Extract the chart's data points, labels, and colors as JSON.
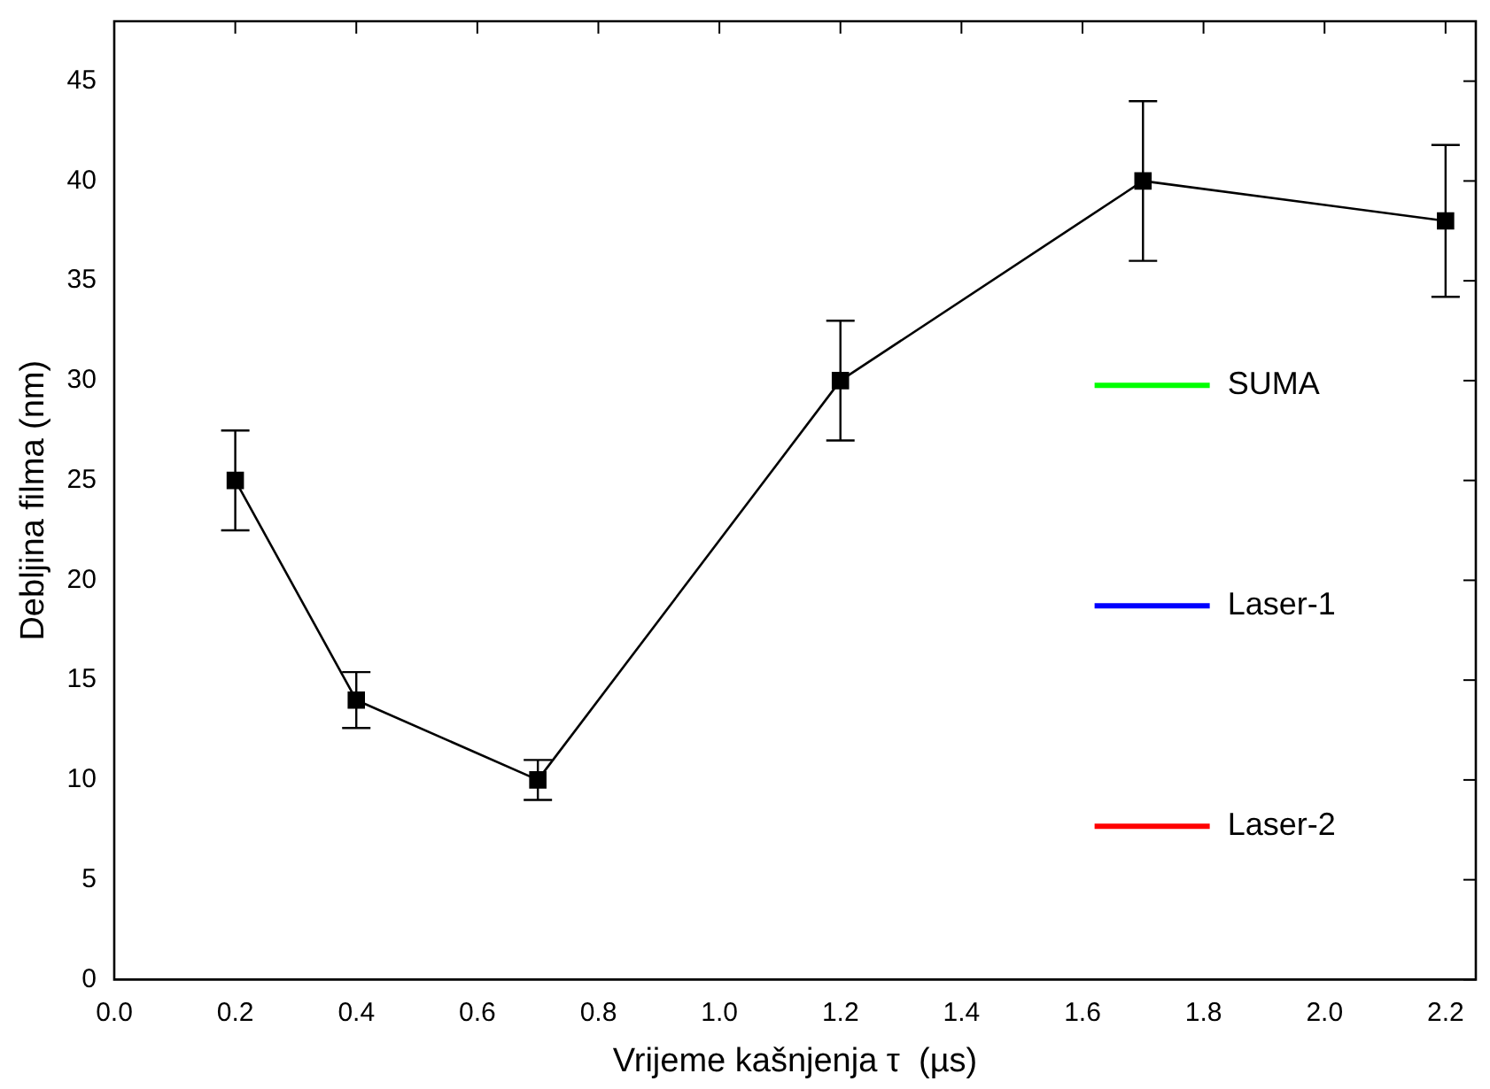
{
  "chart_data": {
    "type": "line",
    "xlabel": "Vrijeme kašnjenja τ  (µs)",
    "ylabel": "Debljina filma (nm)",
    "x": [
      0.2,
      0.4,
      0.7,
      1.2,
      1.7,
      2.2
    ],
    "series": [
      {
        "color": "#000000",
        "values": [
          25,
          14,
          10,
          30,
          40,
          38
        ],
        "errors": [
          2.5,
          1.4,
          1,
          3,
          4,
          3.8
        ]
      },
      {
        "name": "SUMA",
        "color": "#00ff00",
        "values": [
          null,
          null,
          null,
          null,
          null,
          null
        ]
      },
      {
        "name": "Laser-1",
        "color": "#0000ff",
        "values": [
          null,
          null,
          null,
          null,
          null,
          null
        ]
      },
      {
        "name": "Laser-2",
        "color": "#ff0000",
        "values": [
          null,
          null,
          null,
          null,
          null,
          null
        ]
      }
    ],
    "xlim": [
      0,
      2.25
    ],
    "xticks": [
      {
        "value": 0,
        "label": "0.0"
      },
      0.2,
      0.4,
      0.6,
      0.8,
      {
        "value": 1,
        "label": "1.0"
      },
      1.2,
      1.4,
      1.6,
      1.8,
      {
        "value": 2,
        "label": "2.0"
      },
      2.2
    ],
    "ylim": [
      0,
      48
    ],
    "yticks": [
      0,
      5,
      10,
      15,
      20,
      25,
      30,
      35,
      40,
      45
    ],
    "grid": false,
    "legend": "right",
    "marker": "square",
    "line_style": "solid"
  }
}
